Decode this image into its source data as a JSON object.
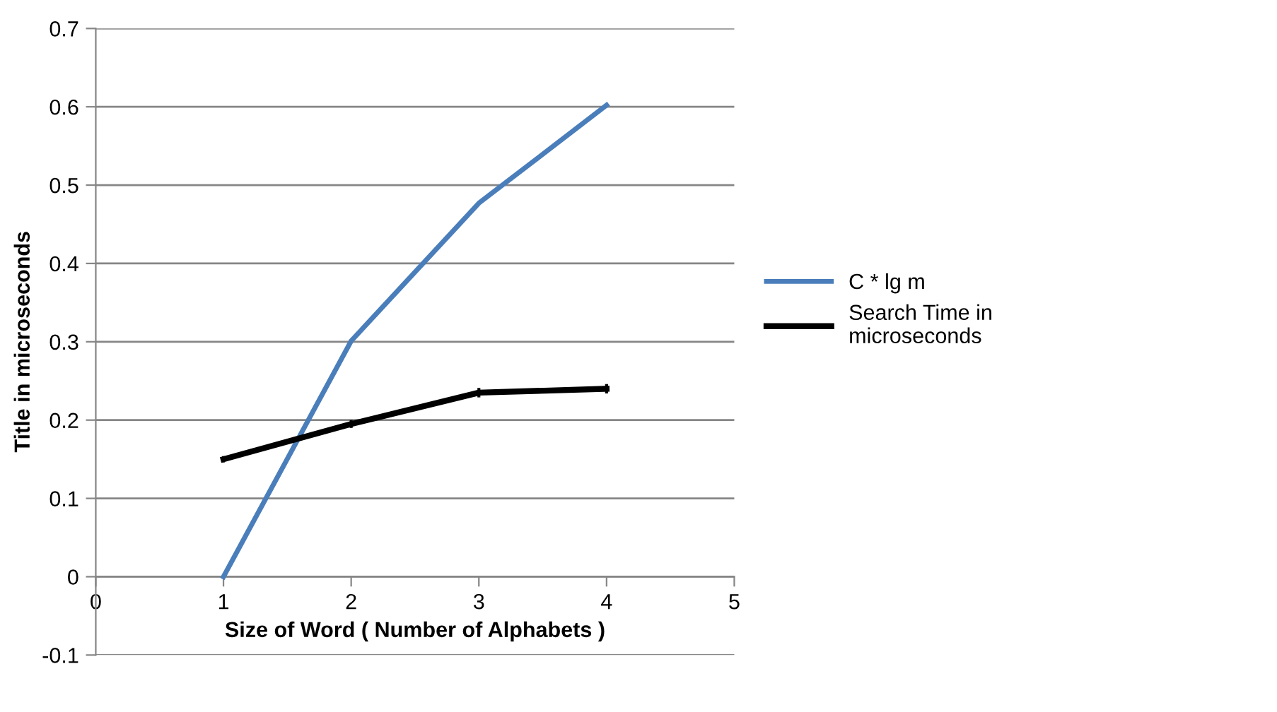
{
  "chart_data": {
    "type": "line",
    "xlabel": "Size of Word ( Number of Alphabets )",
    "ylabel": "Title in microseconds",
    "x": [
      1,
      2,
      3,
      4
    ],
    "series": [
      {
        "name": "C * lg m",
        "color": "#4a7ebb",
        "values": [
          0,
          0.301,
          0.477,
          0.602
        ]
      },
      {
        "name": "Search Time in microseconds",
        "color": "#000000",
        "values": [
          0.15,
          0.195,
          0.235,
          0.24
        ],
        "errors": [
          0.004,
          0.005,
          0.006,
          0.006
        ]
      }
    ],
    "xlim": [
      0,
      5
    ],
    "xticks": [
      0,
      1,
      2,
      3,
      4,
      5
    ],
    "ylim": [
      -0.1,
      0.7
    ],
    "yticks": [
      -0.1,
      0,
      0.1,
      0.2,
      0.3,
      0.4,
      0.5,
      0.6,
      0.7
    ],
    "grid": "y",
    "legend": "right",
    "marker": "none"
  }
}
